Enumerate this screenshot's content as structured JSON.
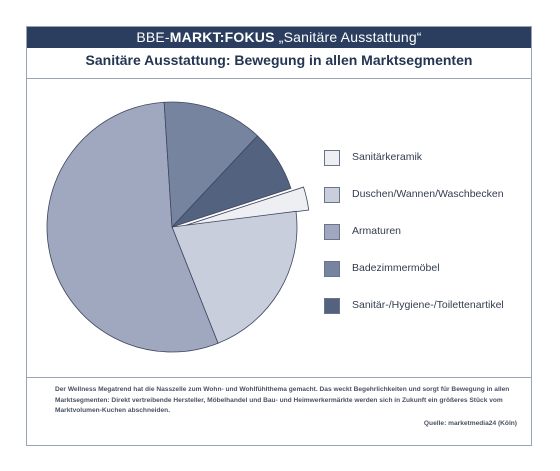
{
  "header": {
    "prefix": "BBE-",
    "brand": "MARKT:FOKUS",
    "topic": "„Sanitäre Ausstattung“"
  },
  "chart_data": {
    "type": "pie",
    "title": "Sanitäre Ausstattung: Bewegung in allen Marktsegmenten",
    "legend_position": "right",
    "slices": [
      {
        "label": "Sanitärkeramik",
        "value": 3,
        "color": "#eeeff3",
        "exploded": true
      },
      {
        "label": "Duschen/Wannen/Waschbecken",
        "value": 21,
        "color": "#c9cedd"
      },
      {
        "label": "Armaturen",
        "value": 55,
        "color": "#9fa8bf"
      },
      {
        "label": "Badezimmermöbel",
        "value": 13,
        "color": "#77849f"
      },
      {
        "label": "Sanitär-/Hygiene-/Toilettenartikel",
        "value": 8,
        "color": "#52627f"
      }
    ],
    "start_angle_deg": -18,
    "slice_stroke": "#3e4660"
  },
  "caption": {
    "text": "Der Wellness Megatrend hat die Nasszelle zum Wohn- und Wohlfühlthema gemacht. Das weckt Begehrlichkeiten und sorgt für Bewegung in allen Marktsegmenten: Direkt vertreibende Hersteller, Möbelhandel und Bau- und Heimwerkermärkte werden sich in Zukunft ein größeres Stück vom Marktvolumen-Kuchen abschneiden.",
    "source": "Quelle: marketmedia24 (Köln)"
  }
}
